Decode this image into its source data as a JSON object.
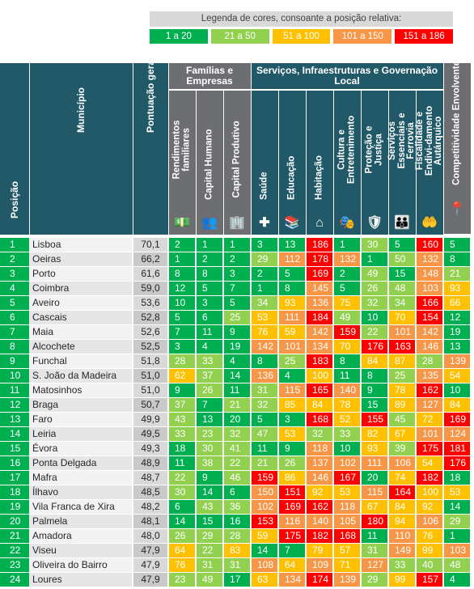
{
  "legend": {
    "title": "Legenda de cores, consoante a posição relativa:",
    "items": [
      {
        "label": "1 a 20",
        "color": "#00b050"
      },
      {
        "label": "21 a 50",
        "color": "#92d050"
      },
      {
        "label": "51 a 100",
        "color": "#ffc000"
      },
      {
        "label": "101 a 150",
        "color": "#f79646"
      },
      {
        "label": "151 a 186",
        "color": "#ff0000"
      }
    ]
  },
  "headers": {
    "position": "Posição",
    "municipality": "Município",
    "score": "Pontuação geral",
    "group1": "Famílias e Empresas",
    "group2": "Serviços, Infraestruturas e Governação Local",
    "indicators": [
      {
        "label": "Rendimentos familiares",
        "icon": "money-icon"
      },
      {
        "label": "Capital Humano",
        "icon": "people-icon"
      },
      {
        "label": "Capital Produtivo",
        "icon": "buildings-icon"
      },
      {
        "label": "Saúde",
        "icon": "health-cross-icon"
      },
      {
        "label": "Educação",
        "icon": "books-icon"
      },
      {
        "label": "Habitação",
        "icon": "house-icon"
      },
      {
        "label": "Cultura e Entretenimento",
        "icon": "theater-masks-icon"
      },
      {
        "label": "Proteção e Justiça",
        "icon": "shield-hand-icon"
      },
      {
        "label": "Serviços Essenciais e Ferrovia",
        "icon": "family-icon"
      },
      {
        "label": "Fiscalidade e Endivi-damento Autárquico",
        "icon": "hand-money-icon"
      },
      {
        "label": "Competitividade Envolvente",
        "icon": "location-pin-icon"
      }
    ]
  },
  "rows": [
    {
      "pos": "1",
      "name": "Lisboa",
      "score": "70,1",
      "ranks": [
        "2",
        "1",
        "1",
        "3",
        "13",
        "186",
        "1",
        "30",
        "5",
        "160",
        "5"
      ]
    },
    {
      "pos": "2",
      "name": "Oeiras",
      "score": "66,2",
      "ranks": [
        "1",
        "2",
        "2",
        "29",
        "112",
        "178",
        "132",
        "1",
        "50",
        "132",
        "8"
      ]
    },
    {
      "pos": "3",
      "name": "Porto",
      "score": "61,6",
      "ranks": [
        "8",
        "8",
        "3",
        "2",
        "5",
        "169",
        "2",
        "49",
        "15",
        "148",
        "21"
      ]
    },
    {
      "pos": "4",
      "name": "Coimbra",
      "score": "59,0",
      "ranks": [
        "12",
        "5",
        "7",
        "1",
        "8",
        "145",
        "5",
        "26",
        "48",
        "103",
        "93"
      ]
    },
    {
      "pos": "5",
      "name": "Aveiro",
      "score": "53,6",
      "ranks": [
        "10",
        "3",
        "5",
        "34",
        "93",
        "136",
        "75",
        "32",
        "34",
        "166",
        "66"
      ]
    },
    {
      "pos": "6",
      "name": "Cascais",
      "score": "52,8",
      "ranks": [
        "5",
        "6",
        "25",
        "53",
        "111",
        "184",
        "49",
        "10",
        "70",
        "154",
        "12"
      ]
    },
    {
      "pos": "7",
      "name": "Maia",
      "score": "52,6",
      "ranks": [
        "7",
        "11",
        "9",
        "76",
        "59",
        "142",
        "159",
        "22",
        "101",
        "142",
        "19"
      ]
    },
    {
      "pos": "8",
      "name": "Alcochete",
      "score": "52,5",
      "ranks": [
        "3",
        "4",
        "19",
        "142",
        "101",
        "134",
        "70",
        "176",
        "163",
        "146",
        "13"
      ]
    },
    {
      "pos": "9",
      "name": "Funchal",
      "score": "51,8",
      "ranks": [
        "28",
        "33",
        "4",
        "8",
        "25",
        "183",
        "8",
        "84",
        "87",
        "28",
        "139"
      ]
    },
    {
      "pos": "10",
      "name": "S. João da Madeira",
      "score": "51,0",
      "ranks": [
        "62",
        "37",
        "14",
        "136",
        "4",
        "100",
        "11",
        "8",
        "25",
        "135",
        "54"
      ]
    },
    {
      "pos": "11",
      "name": "Matosinhos",
      "score": "51,0",
      "ranks": [
        "9",
        "26",
        "11",
        "31",
        "115",
        "165",
        "140",
        "9",
        "78",
        "162",
        "10"
      ]
    },
    {
      "pos": "12",
      "name": "Braga",
      "score": "50,7",
      "ranks": [
        "37",
        "7",
        "21",
        "32",
        "85",
        "84",
        "78",
        "15",
        "89",
        "127",
        "84"
      ]
    },
    {
      "pos": "13",
      "name": "Faro",
      "score": "49,9",
      "ranks": [
        "43",
        "13",
        "20",
        "5",
        "3",
        "168",
        "52",
        "155",
        "45",
        "72",
        "169"
      ]
    },
    {
      "pos": "14",
      "name": "Leiria",
      "score": "49,5",
      "ranks": [
        "33",
        "23",
        "32",
        "47",
        "53",
        "32",
        "33",
        "82",
        "67",
        "101",
        "124"
      ]
    },
    {
      "pos": "15",
      "name": "Évora",
      "score": "49,3",
      "ranks": [
        "18",
        "30",
        "41",
        "11",
        "9",
        "118",
        "10",
        "93",
        "39",
        "175",
        "181"
      ]
    },
    {
      "pos": "16",
      "name": "Ponta Delgada",
      "score": "48,9",
      "ranks": [
        "11",
        "38",
        "22",
        "21",
        "26",
        "137",
        "102",
        "111",
        "106",
        "54",
        "176"
      ]
    },
    {
      "pos": "17",
      "name": "Mafra",
      "score": "48,7",
      "ranks": [
        "22",
        "9",
        "46",
        "159",
        "86",
        "146",
        "167",
        "20",
        "74",
        "182",
        "18"
      ]
    },
    {
      "pos": "18",
      "name": "Ílhavo",
      "score": "48,5",
      "ranks": [
        "30",
        "14",
        "6",
        "150",
        "151",
        "92",
        "53",
        "115",
        "164",
        "100",
        "53"
      ]
    },
    {
      "pos": "19",
      "name": "Vila Franca de Xira",
      "score": "48,2",
      "ranks": [
        "6",
        "43",
        "36",
        "102",
        "169",
        "162",
        "118",
        "67",
        "84",
        "92",
        "14"
      ]
    },
    {
      "pos": "20",
      "name": "Palmela",
      "score": "48,1",
      "ranks": [
        "14",
        "15",
        "16",
        "153",
        "116",
        "140",
        "105",
        "180",
        "94",
        "106",
        "29"
      ]
    },
    {
      "pos": "21",
      "name": "Amadora",
      "score": "48,0",
      "ranks": [
        "26",
        "29",
        "28",
        "59",
        "175",
        "182",
        "168",
        "11",
        "110",
        "76",
        "1"
      ]
    },
    {
      "pos": "22",
      "name": "Viseu",
      "score": "47,9",
      "ranks": [
        "64",
        "22",
        "83",
        "14",
        "7",
        "79",
        "57",
        "31",
        "149",
        "99",
        "103"
      ]
    },
    {
      "pos": "23",
      "name": "Oliveira do Bairro",
      "score": "47,9",
      "ranks": [
        "76",
        "31",
        "31",
        "108",
        "64",
        "109",
        "71",
        "127",
        "33",
        "40",
        "48"
      ]
    },
    {
      "pos": "24",
      "name": "Loures",
      "score": "47,9",
      "ranks": [
        "23",
        "49",
        "17",
        "63",
        "134",
        "174",
        "139",
        "29",
        "99",
        "157",
        "4"
      ]
    }
  ]
}
